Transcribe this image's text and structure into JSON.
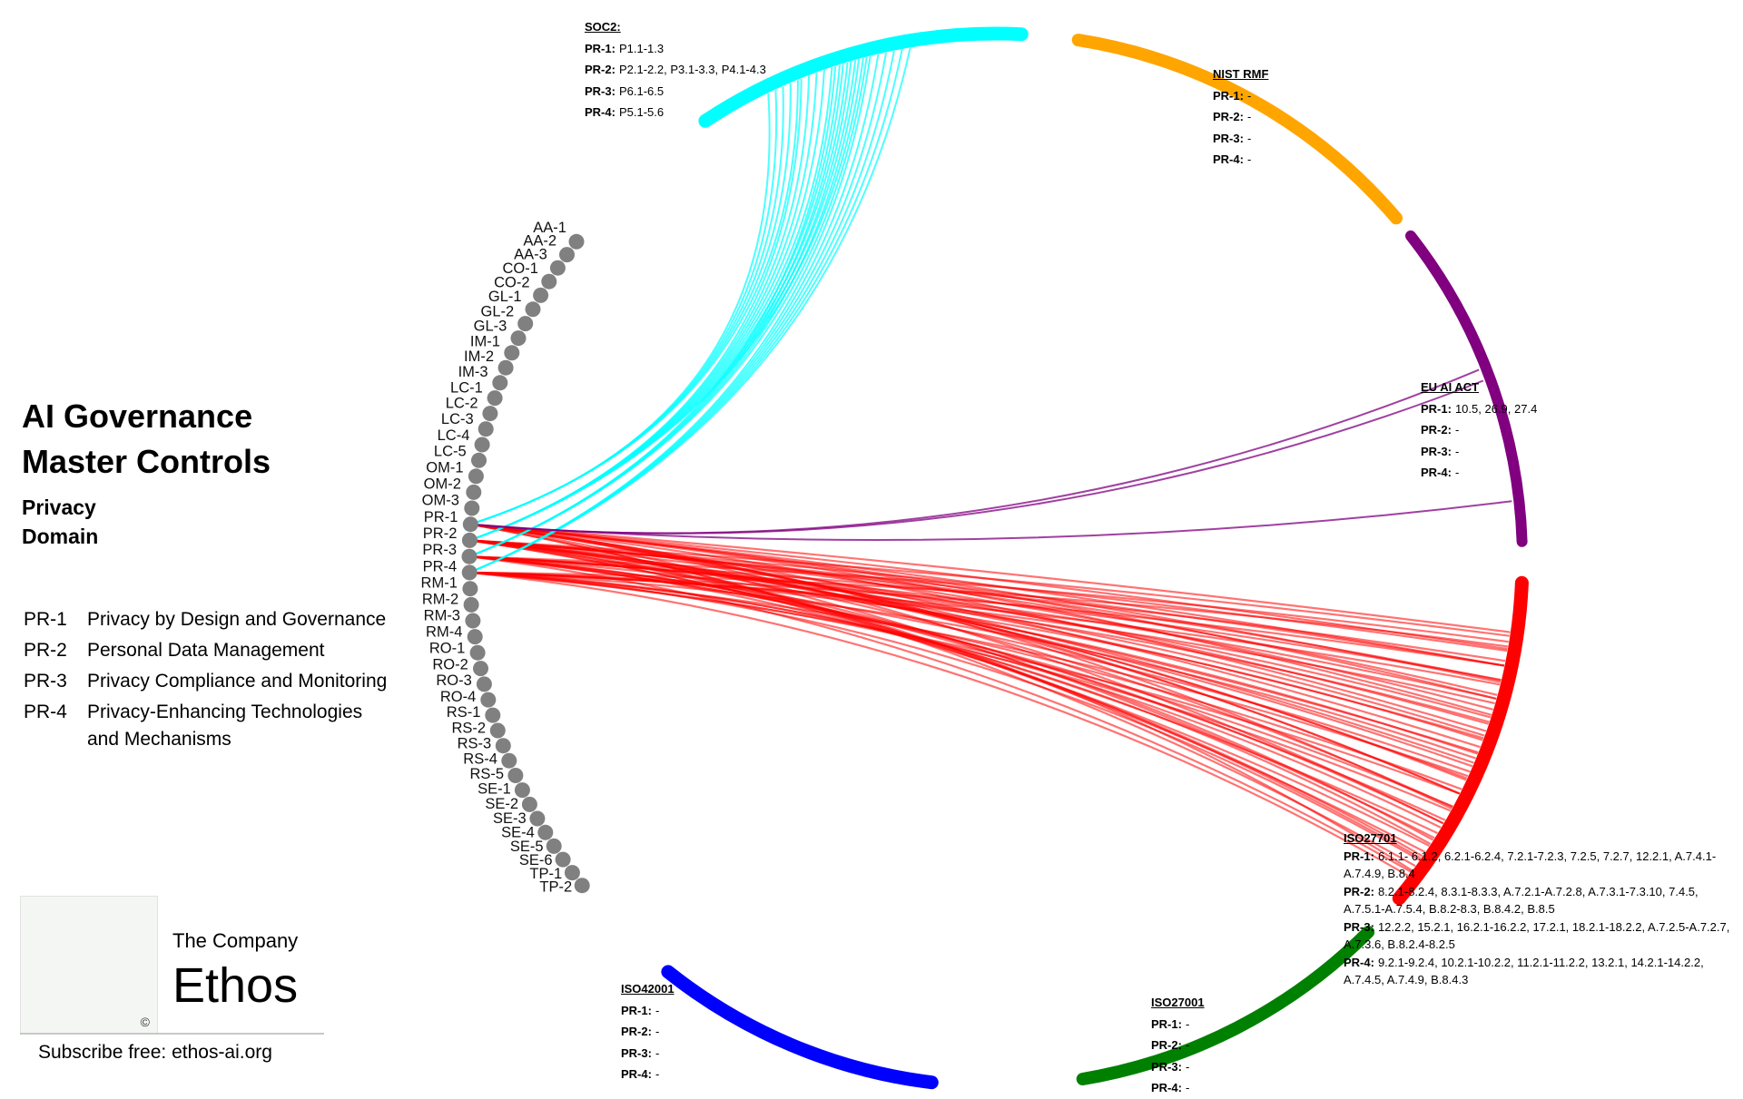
{
  "title": {
    "line1": "AI Governance",
    "line2": "Master Controls"
  },
  "domain": {
    "line1": "Privacy",
    "line2": "Domain"
  },
  "legend": [
    {
      "code": "PR-1",
      "text": "Privacy by Design and Governance"
    },
    {
      "code": "PR-2",
      "text": "Personal Data Management"
    },
    {
      "code": "PR-3",
      "text": "Privacy Compliance and Monitoring"
    },
    {
      "code": "PR-4",
      "text": "Privacy-Enhancing Technologies and Mechanisms"
    }
  ],
  "company": {
    "small": "The Company",
    "big": "Ethos",
    "subscribe": "Subscribe free: ethos-ai.org",
    "copyright": "©"
  },
  "controls": [
    "AA-1",
    "AA-2",
    "AA-3",
    "CO-1",
    "CO-2",
    "GL-1",
    "GL-2",
    "GL-3",
    "IM-1",
    "IM-2",
    "IM-3",
    "LC-1",
    "LC-2",
    "LC-3",
    "LC-4",
    "LC-5",
    "OM-1",
    "OM-2",
    "OM-3",
    "PR-1",
    "PR-2",
    "PR-3",
    "PR-4",
    "RM-1",
    "RM-2",
    "RM-3",
    "RM-4",
    "RO-1",
    "RO-2",
    "RO-3",
    "RO-4",
    "RS-1",
    "RS-2",
    "RS-3",
    "RS-4",
    "RS-5",
    "SE-1",
    "SE-2",
    "SE-3",
    "SE-4",
    "SE-5",
    "SE-6",
    "TP-1",
    "TP-2"
  ],
  "colors": {
    "node": "#808080",
    "soc2": "#00ffff",
    "nist": "#ffa500",
    "euai": "#800080",
    "iso27701": "#ff0000",
    "iso27001": "#008000",
    "iso42001": "#0000ff"
  },
  "frameworks": {
    "soc2": {
      "title": "SOC2:",
      "rows": [
        {
          "label": "PR-1:",
          "value": "P1.1-1.3"
        },
        {
          "label": "PR-2:",
          "value": "P2.1-2.2, P3.1-3.3, P4.1-4.3"
        },
        {
          "label": "PR-3:",
          "value": "P6.1-6.5"
        },
        {
          "label": "PR-4:",
          "value": "P5.1-5.6"
        }
      ]
    },
    "nist": {
      "title": "NIST RMF",
      "rows": [
        {
          "label": "PR-1:",
          "value": "-"
        },
        {
          "label": "PR-2:",
          "value": "-"
        },
        {
          "label": "PR-3:",
          "value": "-"
        },
        {
          "label": "PR-4:",
          "value": "-"
        }
      ]
    },
    "euai": {
      "title": "EU AI ACT",
      "rows": [
        {
          "label": "PR-1:",
          "value": "10.5, 26.9, 27.4"
        },
        {
          "label": "PR-2:",
          "value": "-"
        },
        {
          "label": "PR-3:",
          "value": "-"
        },
        {
          "label": "PR-4:",
          "value": "-"
        }
      ]
    },
    "iso27701": {
      "title": "ISO27701",
      "rows": [
        {
          "label": "PR-1:",
          "value": "6.1.1- 6.1.2, 6.2.1-6.2.4, 7.2.1-7.2.3, 7.2.5, 7.2.7, 12.2.1, A.7.4.1-A.7.4.9, B.8.4"
        },
        {
          "label": "PR-2:",
          "value": "8.2.1-8.2.4, 8.3.1-8.3.3, A.7.2.1-A.7.2.8, A.7.3.1-7.3.10, 7.4.5, A.7.5.1-A.7.5.4, B.8.2-8.3, B.8.4.2, B.8.5"
        },
        {
          "label": "PR-3:",
          "value": "12.2.2, 15.2.1, 16.2.1-16.2.2, 17.2.1, 18.2.1-18.2.2, A.7.2.5-A.7.2.7, A.7.3.6, B.8.2.4-8.2.5"
        },
        {
          "label": "PR-4:",
          "value": "9.2.1-9.2.4, 10.2.1-10.2.2, 11.2.1-11.2.2, 13.2.1, 14.2.1-14.2.2, A.7.4.5, A.7.4.9, B.8.4.3"
        }
      ]
    },
    "iso27001": {
      "title": "ISO27001",
      "rows": [
        {
          "label": "PR-1:",
          "value": "-"
        },
        {
          "label": "PR-2:",
          "value": "-"
        },
        {
          "label": "PR-3:",
          "value": "-"
        },
        {
          "label": "PR-4:",
          "value": "-"
        }
      ]
    },
    "iso42001": {
      "title": "ISO42001",
      "rows": [
        {
          "label": "PR-1:",
          "value": "-"
        },
        {
          "label": "PR-2:",
          "value": "-"
        },
        {
          "label": "PR-3:",
          "value": "-"
        },
        {
          "label": "PR-4:",
          "value": "-"
        }
      ]
    }
  }
}
